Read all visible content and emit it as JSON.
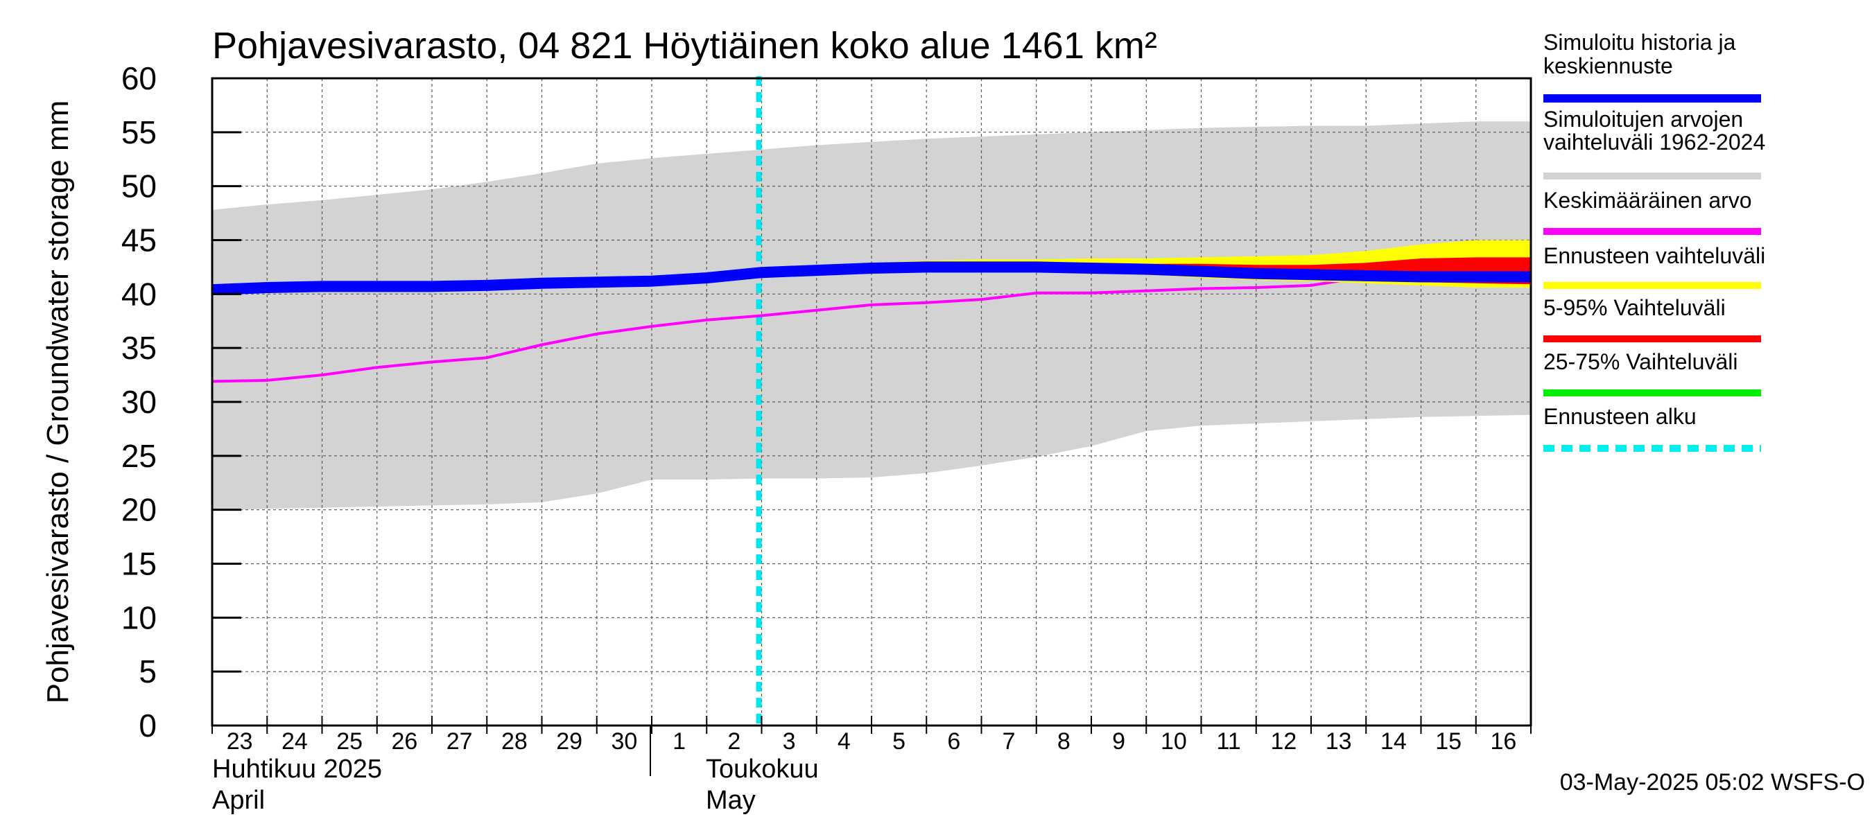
{
  "chart_data": {
    "type": "area",
    "title": "Pohjavesivarasto, 04 821 Höytiäinen koko alue 1461 km²",
    "ylabel": "Pohjavesivarasto / Groundwater storage   mm",
    "ylim": [
      0,
      60
    ],
    "yticks": [
      0,
      5,
      10,
      15,
      20,
      25,
      30,
      35,
      40,
      45,
      50,
      55,
      60
    ],
    "grid": true,
    "legend_position": "right",
    "x_day_labels": [
      "23",
      "24",
      "25",
      "26",
      "27",
      "28",
      "29",
      "30",
      "1",
      "2",
      "3",
      "4",
      "5",
      "6",
      "7",
      "8",
      "9",
      "10",
      "11",
      "12",
      "13",
      "14",
      "15",
      "16"
    ],
    "x_dates": [
      "2025-04-23",
      "2025-04-24",
      "2025-04-25",
      "2025-04-26",
      "2025-04-27",
      "2025-04-28",
      "2025-04-29",
      "2025-04-30",
      "2025-05-01",
      "2025-05-02",
      "2025-05-03",
      "2025-05-04",
      "2025-05-05",
      "2025-05-06",
      "2025-05-07",
      "2025-05-08",
      "2025-05-09",
      "2025-05-10",
      "2025-05-11",
      "2025-05-12",
      "2025-05-13",
      "2025-05-14",
      "2025-05-15",
      "2025-05-16"
    ],
    "month_labels": [
      {
        "fi": "Huhtikuu  2025",
        "en": "April"
      },
      {
        "fi": "Toukokuu",
        "en": "May"
      }
    ],
    "forecast_start": "2025-05-03",
    "series": [
      {
        "name": "Simuloitujen arvojen vaihteluväli 1962-2024",
        "kind": "band",
        "color": "#d3d3d3",
        "x": [
          "2025-04-23",
          "2025-04-24",
          "2025-04-25",
          "2025-04-26",
          "2025-04-27",
          "2025-04-28",
          "2025-04-29",
          "2025-04-30",
          "2025-05-01",
          "2025-05-02",
          "2025-05-03",
          "2025-05-04",
          "2025-05-05",
          "2025-05-06",
          "2025-05-07",
          "2025-05-08",
          "2025-05-09",
          "2025-05-10",
          "2025-05-11",
          "2025-05-12",
          "2025-05-13",
          "2025-05-14",
          "2025-05-15",
          "2025-05-16",
          "2025-05-17"
        ],
        "upper": [
          47.8,
          48.3,
          48.7,
          49.2,
          49.7,
          50.4,
          51.2,
          52.1,
          52.6,
          53.0,
          53.4,
          53.8,
          54.1,
          54.4,
          54.6,
          54.8,
          55.0,
          55.2,
          55.4,
          55.5,
          55.6,
          55.6,
          55.8,
          56.0,
          56.0
        ],
        "lower": [
          19.9,
          20.1,
          20.2,
          20.3,
          20.4,
          20.5,
          20.7,
          21.5,
          22.8,
          22.8,
          22.9,
          22.9,
          23.0,
          23.4,
          24.1,
          24.9,
          25.9,
          27.3,
          27.8,
          28.0,
          28.2,
          28.4,
          28.6,
          28.7,
          28.8
        ]
      },
      {
        "name": "Keskimääräinen arvo",
        "kind": "line",
        "color": "#ff00ff",
        "x": [
          "2025-04-23",
          "2025-04-24",
          "2025-04-25",
          "2025-04-26",
          "2025-04-27",
          "2025-04-28",
          "2025-04-29",
          "2025-04-30",
          "2025-05-01",
          "2025-05-02",
          "2025-05-03",
          "2025-05-04",
          "2025-05-05",
          "2025-05-06",
          "2025-05-07",
          "2025-05-08",
          "2025-05-09",
          "2025-05-10",
          "2025-05-11",
          "2025-05-12",
          "2025-05-13",
          "2025-05-14",
          "2025-05-15",
          "2025-05-16",
          "2025-05-17"
        ],
        "values": [
          31.9,
          32.0,
          32.5,
          33.2,
          33.7,
          34.1,
          35.3,
          36.3,
          37.0,
          37.6,
          38.0,
          38.5,
          39.0,
          39.2,
          39.5,
          40.1,
          40.1,
          40.3,
          40.5,
          40.6,
          40.8,
          41.6,
          41.8,
          41.9,
          42.0
        ]
      },
      {
        "name": "Ennusteen vaihteluväli",
        "kind": "band",
        "color": "#ffff00",
        "x": [
          "2025-05-03",
          "2025-05-04",
          "2025-05-05",
          "2025-05-06",
          "2025-05-07",
          "2025-05-08",
          "2025-05-09",
          "2025-05-10",
          "2025-05-11",
          "2025-05-12",
          "2025-05-13",
          "2025-05-14",
          "2025-05-15",
          "2025-05-16",
          "2025-05-17"
        ],
        "upper": [
          42.2,
          42.6,
          42.9,
          43.1,
          43.2,
          43.2,
          43.3,
          43.3,
          43.4,
          43.5,
          43.6,
          44.0,
          44.6,
          45.0,
          45.0
        ],
        "lower": [
          42.0,
          42.2,
          42.3,
          42.3,
          42.2,
          42.1,
          42.0,
          41.8,
          41.5,
          41.3,
          41.2,
          41.0,
          40.8,
          40.6,
          40.6
        ]
      },
      {
        "name": "5-95% Vaihteluväli",
        "kind": "band",
        "color": "#ff0000",
        "x": [
          "2025-05-03",
          "2025-05-04",
          "2025-05-05",
          "2025-05-06",
          "2025-05-07",
          "2025-05-08",
          "2025-05-09",
          "2025-05-10",
          "2025-05-11",
          "2025-05-12",
          "2025-05-13",
          "2025-05-14",
          "2025-05-15",
          "2025-05-16",
          "2025-05-17"
        ],
        "upper": [
          42.1,
          42.4,
          42.6,
          42.7,
          42.8,
          42.9,
          42.9,
          42.8,
          42.8,
          42.7,
          42.7,
          42.9,
          43.3,
          43.4,
          43.4
        ],
        "lower": [
          42.0,
          42.2,
          42.3,
          42.3,
          42.2,
          42.1,
          42.0,
          41.9,
          41.7,
          41.5,
          41.4,
          41.2,
          41.1,
          41.0,
          40.9
        ]
      },
      {
        "name": "25-75% Vaihteluväli",
        "kind": "band",
        "color": "#00ee00",
        "x": [
          "2025-05-03",
          "2025-05-04",
          "2025-05-05",
          "2025-05-06",
          "2025-05-07",
          "2025-05-08",
          "2025-05-09",
          "2025-05-10",
          "2025-05-11",
          "2025-05-12",
          "2025-05-13",
          "2025-05-14",
          "2025-05-15",
          "2025-05-16",
          "2025-05-17"
        ],
        "upper": [
          42.1,
          42.3,
          42.5,
          42.6,
          42.6,
          42.6,
          42.6,
          42.5,
          42.4,
          42.3,
          42.2,
          42.1,
          42.0,
          42.0,
          42.0
        ],
        "lower": [
          42.0,
          42.2,
          42.3,
          42.4,
          42.4,
          42.4,
          42.3,
          42.2,
          42.1,
          42.0,
          41.9,
          41.8,
          41.7,
          41.6,
          41.6
        ]
      },
      {
        "name": "Simuloitu historia ja keskiennuste",
        "kind": "line",
        "color": "#0000ff",
        "x": [
          "2025-04-23",
          "2025-04-24",
          "2025-04-25",
          "2025-04-26",
          "2025-04-27",
          "2025-04-28",
          "2025-04-29",
          "2025-04-30",
          "2025-05-01",
          "2025-05-02",
          "2025-05-03",
          "2025-05-04",
          "2025-05-05",
          "2025-05-06",
          "2025-05-07",
          "2025-05-08",
          "2025-05-09",
          "2025-05-10",
          "2025-05-11",
          "2025-05-12",
          "2025-05-13",
          "2025-05-14",
          "2025-05-15",
          "2025-05-16",
          "2025-05-17"
        ],
        "values": [
          40.4,
          40.6,
          40.7,
          40.7,
          40.7,
          40.8,
          41.0,
          41.1,
          41.2,
          41.5,
          42.0,
          42.2,
          42.4,
          42.5,
          42.5,
          42.5,
          42.4,
          42.3,
          42.1,
          41.9,
          41.8,
          41.7,
          41.6,
          41.6,
          41.6
        ]
      }
    ],
    "legend": [
      {
        "label": "Simuloitu historia ja keskiennuste",
        "color": "#0000ff",
        "style": "solid"
      },
      {
        "label": "Simuloitujen arvojen vaihteluväli 1962-2024",
        "color": "#d3d3d3",
        "style": "solid"
      },
      {
        "label": "Keskimääräinen arvo",
        "color": "#ff00ff",
        "style": "solid"
      },
      {
        "label": "Ennusteen vaihteluväli",
        "color": "#ffff00",
        "style": "solid"
      },
      {
        "label": "5-95% Vaihteluväli",
        "color": "#ff0000",
        "style": "solid"
      },
      {
        "label": "25-75% Vaihteluväli",
        "color": "#00ee00",
        "style": "solid"
      },
      {
        "label": "Ennusteen alku",
        "color": "#00eeee",
        "style": "dashed"
      }
    ],
    "footer": "03-May-2025 05:02 WSFS-O"
  }
}
